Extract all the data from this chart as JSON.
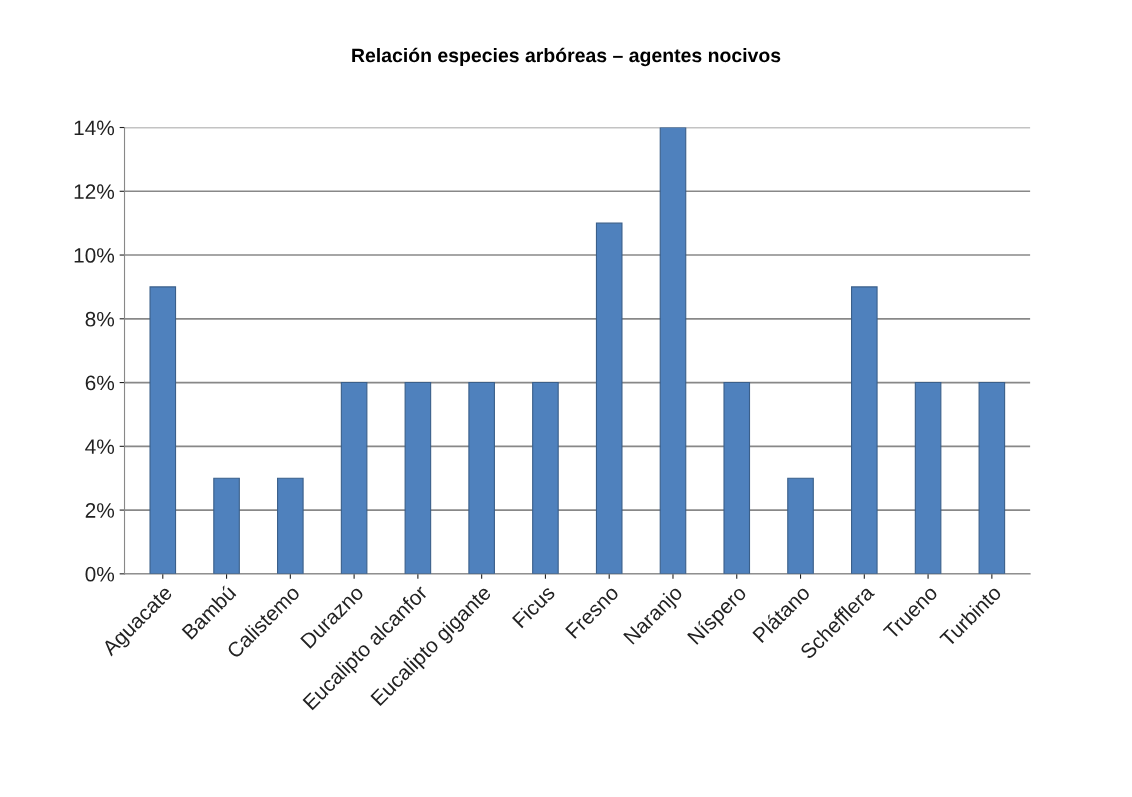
{
  "chart_data": {
    "type": "bar",
    "title": "Relación especies arbóreas – agentes nocivos",
    "categories": [
      "Aguacate",
      "Bambú",
      "Calistemo",
      "Durazno",
      "Eucalipto alcanfor",
      "Eucalipto gigante",
      "Ficus",
      "Fresno",
      "Naranjo",
      "Níspero",
      "Plátano",
      "Schefflera",
      "Trueno",
      "Turbinto"
    ],
    "values": [
      9,
      3,
      3,
      6,
      6,
      6,
      6,
      11,
      14,
      6,
      3,
      9,
      6,
      6
    ],
    "color": "#4f81bd",
    "ylim": [
      0,
      14
    ],
    "yticks": [
      {
        "value": 0,
        "label": "0%"
      },
      {
        "value": 2,
        "label": "2%"
      },
      {
        "value": 4,
        "label": "4%"
      },
      {
        "value": 6,
        "label": "6%"
      },
      {
        "value": 8,
        "label": "8%"
      },
      {
        "value": 10,
        "label": "10%"
      },
      {
        "value": 12,
        "label": "12%"
      },
      {
        "value": 14,
        "label": "14%"
      }
    ],
    "grid": "y",
    "legend": false
  }
}
